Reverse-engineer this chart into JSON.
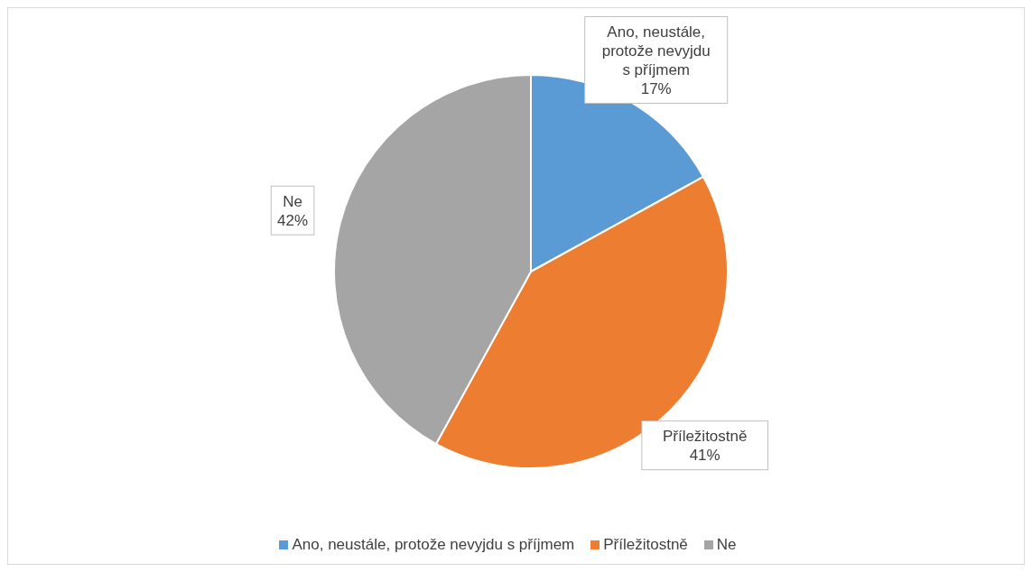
{
  "chart_data": {
    "type": "pie",
    "categories": [
      "Ano, neustále, protože nevyjdu s příjmem",
      "Příležitostně",
      "Ne"
    ],
    "values": [
      17,
      41,
      42
    ],
    "colors": [
      "#5b9bd5",
      "#ed7d31",
      "#a5a5a5"
    ],
    "value_labels": [
      "17%",
      "41%",
      "42%"
    ],
    "legend": "bottom"
  }
}
